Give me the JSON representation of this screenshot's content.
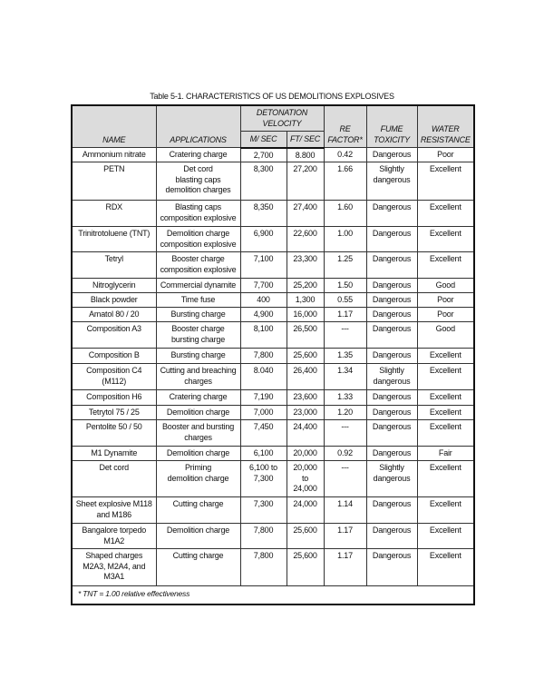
{
  "title": "Table 5-1. CHARACTERISTICS OF US DEMOLITIONS EXPLOSIVES",
  "headers": {
    "name": "NAME",
    "applications": "APPLICATIONS",
    "detonation_velocity": "DETONATION VELOCITY",
    "m_sec": "M/ SEC",
    "ft_sec": "FT/ SEC",
    "re_factor": "RE FACTOR*",
    "fume_toxicity": "FUME TOXICITY",
    "water_resistance": "WATER RESISTANCE"
  },
  "rows": [
    {
      "name": "Ammonium nitrate",
      "app": "Cratering charge",
      "m": "2,700",
      "ft": "8.800",
      "re": "0.42",
      "fume": "Dangerous",
      "water": "Poor"
    },
    {
      "name": "PETN",
      "app": "Det cord\nblasting caps\ndemolition charges",
      "m": "8,300",
      "ft": "27,200",
      "re": "1.66",
      "fume": "Slightly\ndangerous",
      "water": "Excellent"
    },
    {
      "name": "RDX",
      "app": "Blasting caps\ncomposition explosive",
      "m": "8,350",
      "ft": "27,400",
      "re": "1.60",
      "fume": "Dangerous",
      "water": "Excellent"
    },
    {
      "name": "Trinitrotoluene (TNT)",
      "app": "Demolition charge\ncomposition explosive",
      "m": "6,900",
      "ft": "22,600",
      "re": "1.00",
      "fume": "Dangerous",
      "water": "Excellent"
    },
    {
      "name": "Tetryl",
      "app": "Booster charge\ncomposition explosive",
      "m": "7,100",
      "ft": "23,300",
      "re": "1.25",
      "fume": "Dangerous",
      "water": "Excellent"
    },
    {
      "name": "Nitroglycerin",
      "app": "Commercial dynamite",
      "m": "7,700",
      "ft": "25,200",
      "re": "1.50",
      "fume": "Dangerous",
      "water": "Good"
    },
    {
      "name": "Black powder",
      "app": "Time fuse",
      "m": "400",
      "ft": "1,300",
      "re": "0.55",
      "fume": "Dangerous",
      "water": "Poor"
    },
    {
      "name": "Amatol 80 / 20",
      "app": "Bursting charge",
      "m": "4,900",
      "ft": "16,000",
      "re": "1.17",
      "fume": "Dangerous",
      "water": "Poor"
    },
    {
      "name": "Composition A3",
      "app": "Booster charge\nbursting charge",
      "m": "8,100",
      "ft": "26,500",
      "re": "---",
      "fume": "Dangerous",
      "water": "Good"
    },
    {
      "name": "Composition B",
      "app": "Bursting charge",
      "m": "7,800",
      "ft": "25,600",
      "re": "1.35",
      "fume": "Dangerous",
      "water": "Excellent"
    },
    {
      "name": "Composition C4\n(M112)",
      "app": "Cutting and breaching\ncharges",
      "m": "8.040",
      "ft": "26,400",
      "re": "1.34",
      "fume": "Slightly\ndangerous",
      "water": "Excellent"
    },
    {
      "name": "Composition H6",
      "app": "Cratering charge",
      "m": "7,190",
      "ft": "23,600",
      "re": "1.33",
      "fume": "Dangerous",
      "water": "Excellent"
    },
    {
      "name": "Tetrytol 75 / 25",
      "app": "Demolition charge",
      "m": "7,000",
      "ft": "23,000",
      "re": "1.20",
      "fume": "Dangerous",
      "water": "Excellent"
    },
    {
      "name": "Pentolite 50 / 50",
      "app": "Booster and bursting\ncharges",
      "m": "7,450",
      "ft": "24,400",
      "re": "---",
      "fume": "Dangerous",
      "water": "Excellent"
    },
    {
      "name": "M1 Dynamite",
      "app": "Demolition charge",
      "m": "6,100",
      "ft": "20,000",
      "re": "0.92",
      "fume": "Dangerous",
      "water": "Fair"
    },
    {
      "name": "Det cord",
      "app": "Priming\ndemolition charge",
      "m": "6,100 to\n7,300",
      "ft": "20,000\nto\n24,000",
      "re": "---",
      "fume": "Slightly\ndangerous",
      "water": "Excellent"
    },
    {
      "name": "Sheet explosive M118\nand M186",
      "app": "Cutting charge",
      "m": "7,300",
      "ft": "24,000",
      "re": "1.14",
      "fume": "Dangerous",
      "water": "Excellent"
    },
    {
      "name": "Bangalore torpedo\nM1A2",
      "app": "Demolition charge",
      "m": "7,800",
      "ft": "25,600",
      "re": "1.17",
      "fume": "Dangerous",
      "water": "Excellent"
    },
    {
      "name": "Shaped charges\nM2A3, M2A4, and\nM3A1",
      "app": "Cutting charge",
      "m": "7,800",
      "ft": "25,600",
      "re": "1.17",
      "fume": "Dangerous",
      "water": "Excellent"
    }
  ],
  "footnote": "* TNT = 1.00 relative effectiveness"
}
